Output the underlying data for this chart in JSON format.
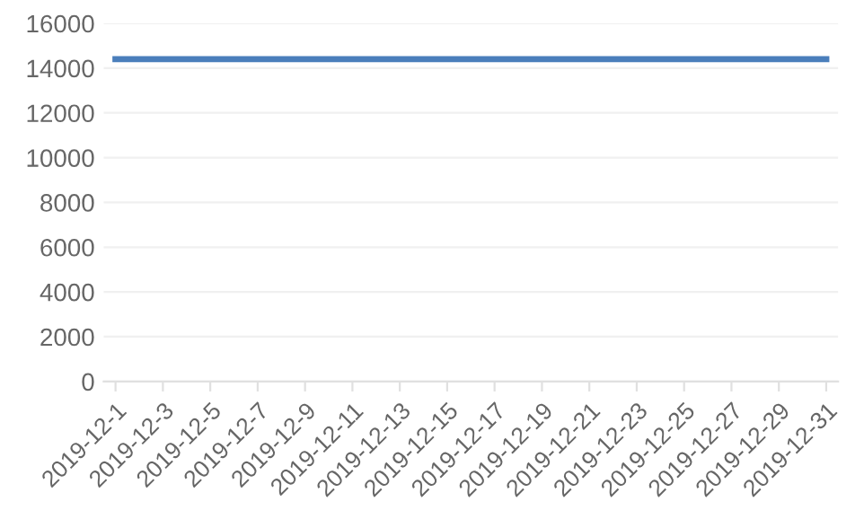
{
  "chart_data": {
    "type": "line",
    "categories": [
      "2019-12-1",
      null,
      "2019-12-3",
      null,
      "2019-12-5",
      null,
      "2019-12-7",
      null,
      "2019-12-9",
      null,
      "2019-12-11",
      null,
      "2019-12-13",
      null,
      "2019-12-15",
      null,
      "2019-12-17",
      null,
      "2019-12-19",
      null,
      "2019-12-21",
      null,
      "2019-12-23",
      null,
      "2019-12-25",
      null,
      "2019-12-27",
      null,
      "2019-12-29",
      null,
      "2019-12-31"
    ],
    "series": [
      {
        "color": "#4a7ebb",
        "values": [
          14400,
          14400,
          14400,
          14400,
          14400,
          14400,
          14400,
          14400,
          14400,
          14400,
          14400,
          14400,
          14400,
          14400,
          14400,
          14400,
          14400,
          14400,
          14400,
          14400,
          14400,
          14400,
          14400,
          14400,
          14400,
          14400,
          14400,
          14400,
          14400,
          14400,
          14400
        ]
      }
    ],
    "ylim": [
      0,
      16000
    ],
    "yticks": [
      0,
      2000,
      4000,
      6000,
      8000,
      10000,
      12000,
      14000,
      16000
    ],
    "grid": "y",
    "marker": "none",
    "line_style": "solid"
  }
}
